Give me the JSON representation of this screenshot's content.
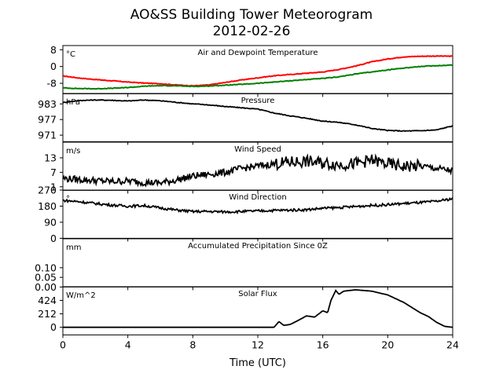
{
  "figure": {
    "title_line1": "AO&SS Building Tower Meteorogram",
    "title_line2": "2012-02-26",
    "xlabel": "Time (UTC)"
  },
  "chart_data": [
    {
      "type": "line",
      "title": "Air and Dewpoint Temperature",
      "unit": "°C",
      "ylim": [
        -13,
        10
      ],
      "yticks": [
        "8",
        "0",
        "-8"
      ],
      "ytick_values": [
        8,
        0,
        -8
      ],
      "xlim": [
        0,
        24
      ],
      "series": [
        {
          "color": "#ff0000",
          "points": [
            [
              0,
              -4.5
            ],
            [
              1,
              -5.5
            ],
            [
              2,
              -6.2
            ],
            [
              3,
              -6.8
            ],
            [
              4,
              -7.4
            ],
            [
              5,
              -7.9
            ],
            [
              6,
              -8.2
            ],
            [
              7,
              -8.8
            ],
            [
              8,
              -9.2
            ],
            [
              9,
              -8.8
            ],
            [
              10,
              -7.6
            ],
            [
              11,
              -6.4
            ],
            [
              12,
              -5.4
            ],
            [
              13,
              -4.4
            ],
            [
              14,
              -3.8
            ],
            [
              15,
              -3.2
            ],
            [
              16,
              -2.6
            ],
            [
              17,
              -1.4
            ],
            [
              18,
              0.2
            ],
            [
              19,
              2.2
            ],
            [
              20,
              3.6
            ],
            [
              21,
              4.6
            ],
            [
              22,
              4.9
            ],
            [
              23,
              5.0
            ],
            [
              24,
              4.9
            ]
          ]
        },
        {
          "color": "#008000",
          "points": [
            [
              0,
              -10.2
            ],
            [
              1,
              -10.5
            ],
            [
              2,
              -10.6
            ],
            [
              3,
              -10.4
            ],
            [
              4,
              -10.0
            ],
            [
              5,
              -9.4
            ],
            [
              6,
              -9.1
            ],
            [
              7,
              -9.2
            ],
            [
              8,
              -9.5
            ],
            [
              9,
              -9.3
            ],
            [
              10,
              -8.9
            ],
            [
              11,
              -8.5
            ],
            [
              12,
              -8.0
            ],
            [
              13,
              -7.4
            ],
            [
              14,
              -6.8
            ],
            [
              15,
              -6.2
            ],
            [
              16,
              -5.7
            ],
            [
              17,
              -4.9
            ],
            [
              18,
              -3.6
            ],
            [
              19,
              -2.6
            ],
            [
              20,
              -1.6
            ],
            [
              21,
              -0.7
            ],
            [
              22,
              0.0
            ],
            [
              23,
              0.4
            ],
            [
              24,
              0.7
            ]
          ]
        }
      ]
    },
    {
      "type": "line",
      "title": "Pressure",
      "unit": "hPa",
      "ylim": [
        968.5,
        987
      ],
      "yticks": [
        "983",
        "977",
        "971"
      ],
      "ytick_values": [
        983,
        977,
        971
      ],
      "xlim": [
        0,
        24
      ],
      "series": [
        {
          "color": "#000000",
          "points": [
            [
              0,
              983.5
            ],
            [
              1,
              984.3
            ],
            [
              2,
              984.5
            ],
            [
              3,
              984.4
            ],
            [
              4,
              984.1
            ],
            [
              5,
              984.5
            ],
            [
              6,
              984.2
            ],
            [
              7,
              983.6
            ],
            [
              8,
              983.0
            ],
            [
              9,
              982.6
            ],
            [
              10,
              982.0
            ],
            [
              11,
              981.5
            ],
            [
              12,
              981.0
            ],
            [
              13,
              979.5
            ],
            [
              14,
              978.4
            ],
            [
              15,
              977.5
            ],
            [
              16,
              976.4
            ],
            [
              17,
              975.9
            ],
            [
              18,
              975.0
            ],
            [
              19,
              973.6
            ],
            [
              20,
              972.8
            ],
            [
              21,
              972.6
            ],
            [
              22,
              972.7
            ],
            [
              23,
              973.0
            ],
            [
              24,
              974.6
            ]
          ]
        }
      ]
    },
    {
      "type": "line",
      "title": "Wind Speed",
      "unit": "m/s",
      "ylim": [
        -0.5,
        19.5
      ],
      "yticks": [
        "13",
        "7",
        "1"
      ],
      "ytick_values": [
        13,
        7,
        1
      ],
      "xlim": [
        0,
        24
      ],
      "series": [
        {
          "color": "#000000",
          "points": [
            [
              0,
              4.5
            ],
            [
              1,
              4.0
            ],
            [
              2,
              3.6
            ],
            [
              3,
              3.2
            ],
            [
              4,
              3.4
            ],
            [
              5,
              2.8
            ],
            [
              6,
              2.6
            ],
            [
              7,
              3.8
            ],
            [
              8,
              5.4
            ],
            [
              9,
              6.2
            ],
            [
              10,
              7.0
            ],
            [
              11,
              8.6
            ],
            [
              12,
              9.6
            ],
            [
              13,
              10.5
            ],
            [
              14,
              11.2
            ],
            [
              15,
              11.5
            ],
            [
              16,
              10.8
            ],
            [
              17,
              10.2
            ],
            [
              18,
              10.6
            ],
            [
              19,
              12.0
            ],
            [
              20,
              10.4
            ],
            [
              21,
              9.4
            ],
            [
              22,
              9.6
            ],
            [
              23,
              8.6
            ],
            [
              24,
              7.6
            ]
          ]
        }
      ]
    },
    {
      "type": "line",
      "title": "Wind Direction",
      "unit": "°",
      "ylim": [
        0,
        270
      ],
      "yticks": [
        "270",
        "180",
        "90",
        "0"
      ],
      "ytick_values": [
        270,
        180,
        90,
        0
      ],
      "xlim": [
        0,
        24
      ],
      "series": [
        {
          "color": "#000000",
          "points": [
            [
              0,
              212
            ],
            [
              1,
              205
            ],
            [
              2,
              195
            ],
            [
              3,
              186
            ],
            [
              4,
              180
            ],
            [
              5,
              183
            ],
            [
              6,
              170
            ],
            [
              7,
              158
            ],
            [
              8,
              150
            ],
            [
              9,
              150
            ],
            [
              10,
              148
            ],
            [
              11,
              150
            ],
            [
              12,
              153
            ],
            [
              13,
              156
            ],
            [
              14,
              158
            ],
            [
              15,
              160
            ],
            [
              16,
              168
            ],
            [
              17,
              172
            ],
            [
              18,
              178
            ],
            [
              19,
              184
            ],
            [
              20,
              188
            ],
            [
              21,
              195
            ],
            [
              22,
              200
            ],
            [
              23,
              207
            ],
            [
              24,
              222
            ]
          ]
        }
      ]
    },
    {
      "type": "line",
      "title": "Accumulated Precipitation Since 0Z",
      "unit": "mm",
      "ylim": [
        0,
        0.25
      ],
      "yticks": [
        "0.10",
        "0.05",
        "0.00"
      ],
      "ytick_values": [
        0.1,
        0.05,
        0.0
      ],
      "xlim": [
        0,
        24
      ],
      "series": [
        {
          "color": "#000000",
          "points": [
            [
              0,
              0
            ],
            [
              24,
              0
            ]
          ]
        }
      ]
    },
    {
      "type": "line",
      "title": "Solar Flux",
      "unit": "W/m^2",
      "ylim": [
        -120,
        640
      ],
      "yticks": [
        "424",
        "212",
        "0"
      ],
      "ytick_values": [
        424,
        212,
        0
      ],
      "xlim": [
        0,
        24
      ],
      "series": [
        {
          "color": "#000000",
          "points": [
            [
              0,
              0
            ],
            [
              13,
              0
            ],
            [
              13.3,
              90
            ],
            [
              13.6,
              30
            ],
            [
              14,
              45
            ],
            [
              14.5,
              110
            ],
            [
              15,
              180
            ],
            [
              15.5,
              160
            ],
            [
              16,
              260
            ],
            [
              16.3,
              230
            ],
            [
              16.5,
              420
            ],
            [
              16.8,
              580
            ],
            [
              17,
              520
            ],
            [
              17.3,
              570
            ],
            [
              18,
              590
            ],
            [
              19,
              570
            ],
            [
              20,
              510
            ],
            [
              21,
              390
            ],
            [
              22,
              230
            ],
            [
              22.5,
              170
            ],
            [
              23,
              80
            ],
            [
              23.5,
              15
            ],
            [
              24,
              0
            ]
          ]
        }
      ]
    }
  ],
  "x_axis": {
    "ticks": [
      "0",
      "4",
      "8",
      "12",
      "16",
      "20",
      "24"
    ],
    "tick_values": [
      0,
      4,
      8,
      12,
      16,
      20,
      24
    ]
  }
}
